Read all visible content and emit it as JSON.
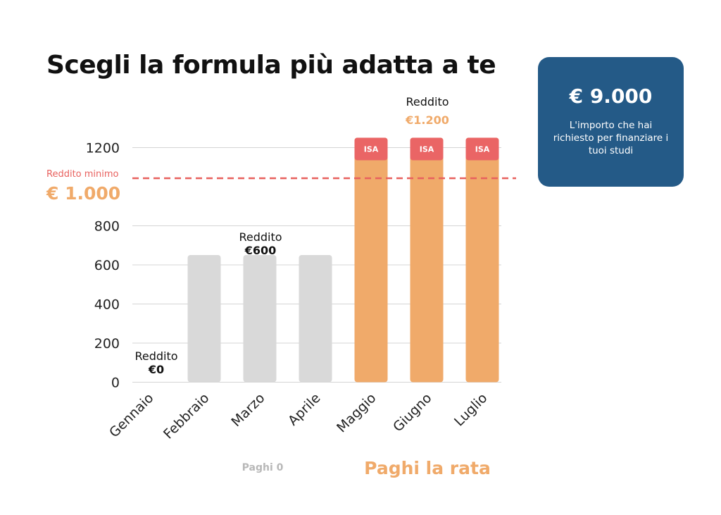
{
  "title": "Scegli la formula più adatta a te",
  "info_card": {
    "amount": "€ 9.000",
    "description": "L'importo che hai richiesto per finanziare i tuoi studi"
  },
  "colors": {
    "grey_bar": "#d9d9d9",
    "orange_bar": "#f0aa6a",
    "isa_red": "#ea6565",
    "threshold_line": "#e8615e",
    "orange_text": "#f0aa6a",
    "card_bg": "#245a87",
    "grey_text": "#b8b8b8"
  },
  "chart_data": {
    "type": "bar",
    "categories": [
      "Gennaio",
      "Febbraio",
      "Marzo",
      "Aprile",
      "Maggio",
      "Giugno",
      "Luglio"
    ],
    "values": [
      0,
      600,
      600,
      600,
      1200,
      1200,
      1200
    ],
    "y_ticks": [
      "0",
      "200",
      "400",
      "600",
      "800",
      "1200"
    ],
    "ylim": [
      0,
      1260
    ],
    "grid": true,
    "segment_labels": [
      "ISA",
      "ISA",
      "ISA"
    ],
    "threshold": {
      "value": 1000,
      "caption": "Reddito minimo",
      "label": "€ 1.000"
    },
    "annotations": [
      {
        "title": "Reddito",
        "value": "€0"
      },
      {
        "title": "Reddito",
        "value": "€600"
      },
      {
        "title": "Reddito",
        "value": "€1.200"
      }
    ],
    "group_labels": {
      "left": "Paghi 0",
      "right": "Paghi la rata"
    }
  }
}
